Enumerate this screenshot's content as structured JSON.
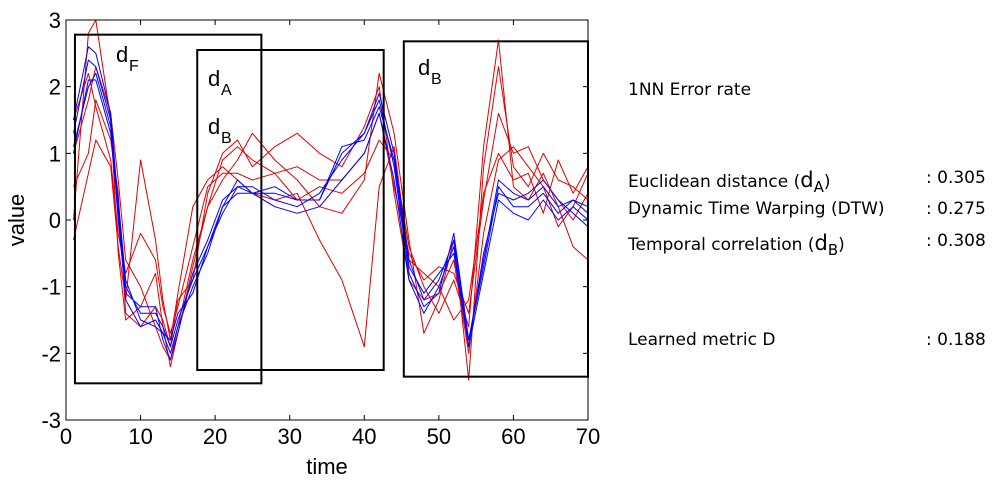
{
  "chart_data": {
    "type": "line",
    "xlabel": "time",
    "ylabel": "value",
    "xlim": [
      0,
      70
    ],
    "ylim": [
      -3,
      3
    ],
    "xticks": [
      "0",
      "10",
      "20",
      "30",
      "40",
      "50",
      "60",
      "70"
    ],
    "yticks": [
      "-3",
      "-2",
      "-1",
      "0",
      "1",
      "2",
      "3"
    ],
    "grid": false,
    "series_colors": {
      "class_blue": "#0000ff",
      "class_red": "#e00000"
    },
    "series": [
      {
        "class": "blue",
        "x": [
          1,
          3,
          4,
          6,
          7,
          8,
          10,
          12,
          13,
          14,
          15,
          17,
          19,
          21,
          23,
          25,
          28,
          31,
          34,
          37,
          40,
          42,
          44,
          46,
          48,
          50,
          52,
          54,
          56,
          58,
          60,
          62,
          64,
          66,
          68,
          70
        ],
        "values": [
          1.5,
          2.6,
          2.5,
          1.6,
          0.2,
          -1.0,
          -1.4,
          -1.4,
          -1.6,
          -1.9,
          -1.5,
          -0.9,
          -0.4,
          0.1,
          0.5,
          0.4,
          0.4,
          0.3,
          0.3,
          1.0,
          1.3,
          1.9,
          1.0,
          -0.6,
          -1.2,
          -0.9,
          -0.3,
          -1.8,
          -0.6,
          0.6,
          0.4,
          0.3,
          0.5,
          0.2,
          0.3,
          0.1
        ]
      },
      {
        "class": "blue",
        "x": [
          1,
          3,
          4,
          6,
          7,
          8,
          10,
          12,
          13,
          14,
          15,
          17,
          19,
          21,
          23,
          25,
          28,
          31,
          34,
          37,
          40,
          42,
          44,
          46,
          48,
          50,
          52,
          54,
          56,
          58,
          60,
          62,
          64,
          66,
          68,
          70
        ],
        "values": [
          1.0,
          2.1,
          2.1,
          1.3,
          0.1,
          -1.2,
          -1.6,
          -1.5,
          -1.7,
          -2.0,
          -1.6,
          -1.0,
          -0.5,
          0.2,
          0.6,
          0.4,
          0.2,
          0.1,
          0.2,
          0.6,
          1.0,
          1.6,
          0.6,
          -0.9,
          -1.4,
          -1.0,
          -0.4,
          -1.9,
          -0.8,
          0.3,
          0.1,
          0.0,
          0.3,
          0.0,
          0.2,
          0.0
        ]
      },
      {
        "class": "blue",
        "x": [
          1,
          3,
          4,
          6,
          7,
          8,
          10,
          12,
          13,
          14,
          15,
          17,
          19,
          21,
          23,
          25,
          28,
          31,
          34,
          37,
          40,
          42,
          44,
          46,
          48,
          50,
          52,
          54,
          56,
          58,
          60,
          62,
          64,
          66,
          68,
          70
        ],
        "values": [
          1.3,
          2.4,
          2.3,
          1.5,
          0.0,
          -1.1,
          -1.3,
          -1.3,
          -1.8,
          -2.1,
          -1.7,
          -0.8,
          -0.3,
          0.3,
          0.5,
          0.5,
          0.3,
          0.2,
          0.4,
          0.9,
          1.3,
          1.8,
          0.8,
          -0.8,
          -1.3,
          -1.1,
          -0.2,
          -1.8,
          -0.7,
          0.5,
          0.2,
          0.2,
          0.4,
          0.1,
          0.3,
          0.2
        ]
      },
      {
        "class": "blue",
        "x": [
          1,
          3,
          4,
          6,
          7,
          8,
          10,
          12,
          13,
          14,
          15,
          17,
          19,
          21,
          23,
          25,
          28,
          31,
          34,
          37,
          40,
          42,
          44,
          46,
          48,
          50,
          52,
          54,
          56,
          58,
          60,
          62,
          64,
          66,
          68,
          70
        ],
        "values": [
          1.1,
          2.0,
          2.2,
          1.4,
          0.3,
          -0.9,
          -1.5,
          -1.6,
          -1.7,
          -1.8,
          -1.4,
          -1.1,
          -0.4,
          0.2,
          0.4,
          0.4,
          0.5,
          0.3,
          0.3,
          1.1,
          1.2,
          1.7,
          0.9,
          -0.7,
          -1.1,
          -0.8,
          -0.5,
          -1.9,
          -0.5,
          0.4,
          0.3,
          0.4,
          0.6,
          0.3,
          0.1,
          -0.1
        ]
      },
      {
        "class": "red",
        "x": [
          1,
          3,
          4,
          6,
          7,
          8,
          10,
          12,
          13,
          14,
          15,
          17,
          19,
          21,
          23,
          25,
          28,
          31,
          34,
          37,
          40,
          42,
          44,
          46,
          48,
          50,
          52,
          54,
          56,
          58,
          60,
          62,
          64,
          66,
          68,
          70
        ],
        "values": [
          0.0,
          2.8,
          3.0,
          1.5,
          -0.5,
          -1.5,
          -1.3,
          -0.8,
          -1.6,
          -2.2,
          -1.7,
          -0.7,
          0.2,
          0.6,
          0.9,
          1.3,
          0.9,
          0.6,
          0.2,
          0.1,
          0.6,
          2.2,
          1.3,
          -0.3,
          -1.7,
          -1.2,
          -0.3,
          -2.4,
          0.8,
          2.3,
          0.8,
          0.5,
          1.0,
          0.6,
          0.5,
          0.3
        ]
      },
      {
        "class": "red",
        "x": [
          1,
          3,
          4,
          6,
          7,
          8,
          10,
          12,
          13,
          14,
          15,
          17,
          19,
          21,
          23,
          25,
          28,
          31,
          34,
          37,
          40,
          42,
          44,
          46,
          48,
          50,
          52,
          54,
          56,
          58,
          60,
          62,
          64,
          66,
          68,
          70
        ],
        "values": [
          -0.3,
          0.7,
          1.2,
          0.8,
          -0.4,
          -1.2,
          0.9,
          -0.3,
          -1.2,
          -1.8,
          -1.1,
          0.2,
          0.6,
          0.8,
          0.6,
          0.4,
          0.3,
          0.4,
          -0.3,
          -0.9,
          -1.9,
          0.5,
          1.1,
          -0.6,
          -0.8,
          -1.0,
          -1.5,
          -1.2,
          0.4,
          1.0,
          0.6,
          0.7,
          0.1,
          0.9,
          0.4,
          0.8
        ]
      },
      {
        "class": "red",
        "x": [
          1,
          3,
          4,
          6,
          7,
          8,
          10,
          12,
          13,
          14,
          15,
          17,
          19,
          21,
          23,
          25,
          28,
          31,
          34,
          37,
          40,
          42,
          44,
          46,
          48,
          50,
          52,
          54,
          56,
          58,
          60,
          62,
          64,
          66,
          68,
          70
        ],
        "values": [
          1.0,
          1.8,
          2.3,
          1.6,
          0.6,
          -0.6,
          -1.0,
          -1.6,
          -1.9,
          -2.1,
          -1.6,
          -0.6,
          0.2,
          0.9,
          1.1,
          0.9,
          0.7,
          0.3,
          0.5,
          0.4,
          0.7,
          1.2,
          0.9,
          -0.4,
          -1.0,
          -1.4,
          -0.9,
          -1.6,
          1.1,
          2.7,
          0.5,
          0.3,
          0.7,
          0.2,
          -0.4,
          -0.6
        ]
      },
      {
        "class": "red",
        "x": [
          1,
          3,
          4,
          6,
          7,
          8,
          10,
          12,
          13,
          14,
          15,
          17,
          19,
          21,
          23,
          25,
          28,
          31,
          34,
          37,
          40,
          42,
          44,
          46,
          48,
          50,
          52,
          54,
          56,
          58,
          60,
          62,
          64,
          66,
          68,
          70
        ],
        "values": [
          0.5,
          1.0,
          1.8,
          1.2,
          0.4,
          -1.4,
          -1.6,
          -1.3,
          -1.5,
          -1.9,
          -1.2,
          -0.9,
          0.4,
          1.0,
          1.2,
          0.8,
          1.1,
          1.3,
          1.0,
          0.8,
          1.4,
          2.0,
          0.4,
          -0.9,
          -1.2,
          -1.1,
          -0.6,
          -2.0,
          -0.2,
          0.9,
          1.1,
          0.8,
          0.5,
          -0.1,
          0.2,
          0.7
        ]
      },
      {
        "class": "red",
        "x": [
          1,
          3,
          4,
          6,
          7,
          8,
          10,
          12,
          13,
          14,
          15,
          17,
          19,
          21,
          23,
          25,
          28,
          31,
          34,
          37,
          40,
          42,
          44,
          46,
          48,
          50,
          52,
          54,
          56,
          58,
          60,
          62,
          64,
          66,
          68,
          70
        ],
        "values": [
          1.5,
          2.2,
          1.7,
          0.9,
          -0.2,
          -0.8,
          -0.2,
          -0.6,
          -1.3,
          -1.7,
          -1.3,
          -0.4,
          0.5,
          0.7,
          0.7,
          0.6,
          0.7,
          0.8,
          0.6,
          0.6,
          1.0,
          1.6,
          0.5,
          -0.5,
          -0.9,
          -0.7,
          -0.8,
          -1.4,
          0.3,
          1.6,
          1.0,
          1.1,
          0.6,
          0.3,
          0.0,
          0.4
        ]
      }
    ],
    "annotations": [
      {
        "label": "d",
        "sub": "F"
      },
      {
        "label": "d",
        "sub": "A"
      },
      {
        "label": "d",
        "sub": "B"
      },
      {
        "label": "d",
        "sub": "B"
      }
    ],
    "regions": [
      {
        "x_from": 1.2,
        "x_to": 26.2,
        "y_from": -2.45,
        "y_to": 2.78
      },
      {
        "x_from": 17.6,
        "x_to": 42.6,
        "y_from": -2.25,
        "y_to": 2.55
      },
      {
        "x_from": 45.3,
        "x_to": 70.0,
        "y_from": -2.35,
        "y_to": 2.68
      }
    ]
  },
  "error_panel": {
    "title": "1NN  Error rate",
    "rows": [
      {
        "label": "Euclidean distance (",
        "sym": "d",
        "sub": "A",
        "close": ")",
        "value": ": 0.305"
      },
      {
        "label": "Dynamic Time Warping (DTW)",
        "sym": "",
        "sub": "",
        "close": "",
        "value": ": 0.275"
      },
      {
        "label": "Temporal correlation (",
        "sym": "d",
        "sub": "B",
        "close": ")",
        "value": ": 0.308"
      },
      {
        "label": "Learned metric D",
        "sym": "",
        "sub": "",
        "close": "",
        "value": ": 0.188"
      }
    ]
  }
}
